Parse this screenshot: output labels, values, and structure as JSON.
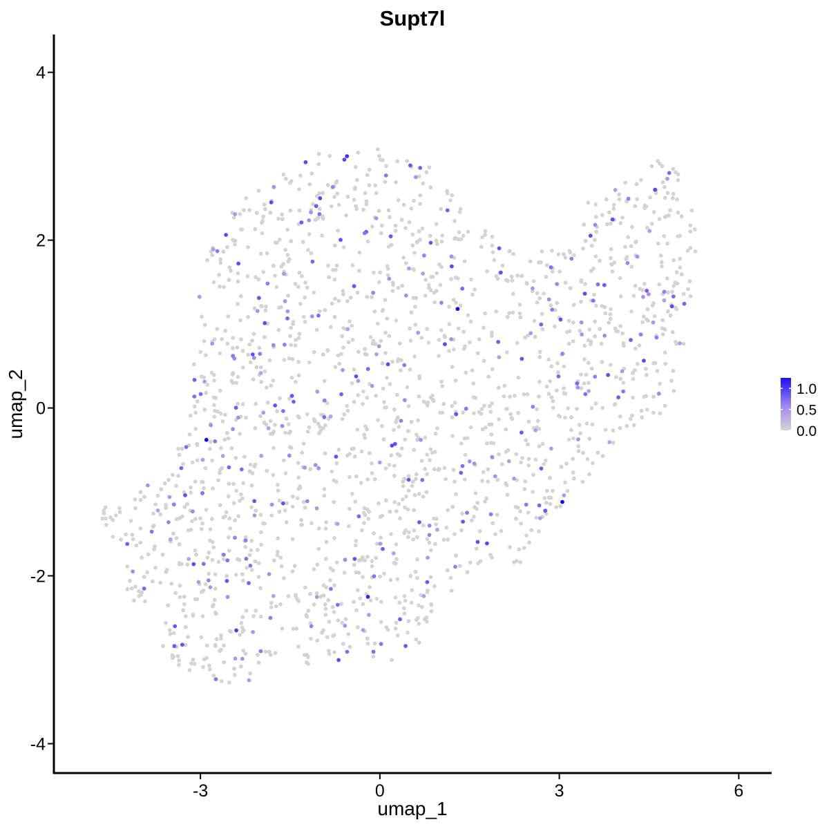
{
  "chart_data": {
    "type": "scatter",
    "title": "Supt7l",
    "xlabel": "umap_1",
    "ylabel": "umap_2",
    "xlim": [
      -5.45,
      6.55
    ],
    "ylim": [
      -4.35,
      4.45
    ],
    "x_ticks": [
      -3,
      0,
      3,
      6
    ],
    "y_ticks": [
      -4,
      -2,
      0,
      2,
      4
    ],
    "x_tick_labels": [
      "-3",
      "0",
      "3",
      "6"
    ],
    "y_tick_labels": [
      "-4",
      "-2",
      "0",
      "2",
      "4"
    ],
    "grid": false,
    "legend": {
      "position": "right",
      "type": "colorbar",
      "ticks": [
        1.0,
        0.5,
        0.0
      ],
      "tick_labels": [
        "1.0",
        "0.5",
        "0.0"
      ],
      "range": [
        0.0,
        1.25
      ]
    },
    "colors": {
      "low": "#d3d3d3",
      "high": "#0000ff"
    },
    "n_points_approx": 1900,
    "highlighted_points": [
      {
        "x": 1.3,
        "y": 1.18,
        "value": 1.2
      },
      {
        "x": -2.9,
        "y": -0.38,
        "value": 1.2
      },
      {
        "x": 3.05,
        "y": -1.12,
        "value": 1.2
      },
      {
        "x": -0.2,
        "y": -2.25,
        "value": 1.05
      },
      {
        "x": -0.55,
        "y": 3.0,
        "value": 1.0
      },
      {
        "x": -2.4,
        "y": -2.65,
        "value": 0.95
      },
      {
        "x": 4.6,
        "y": 2.6,
        "value": 0.9
      },
      {
        "x": -1.0,
        "y": 2.5,
        "value": 0.9
      }
    ]
  }
}
